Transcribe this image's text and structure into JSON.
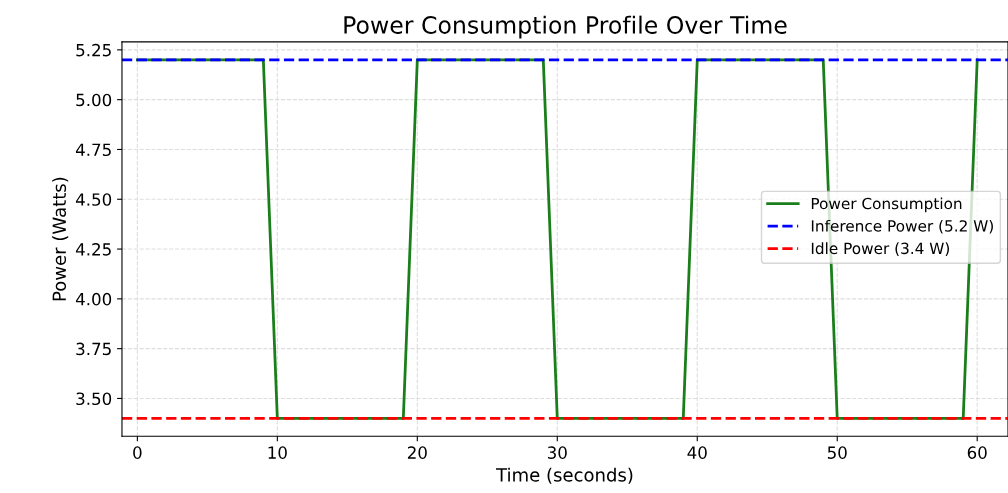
{
  "chart_data": {
    "type": "line",
    "title": "Power Consumption Profile Over Time",
    "xlabel": "Time (seconds)",
    "ylabel": "Power (Watts)",
    "series": [
      {
        "name": "Power Consumption",
        "color": "#1a7f1a",
        "x": [
          0,
          9,
          10,
          19,
          20,
          29,
          30,
          39,
          40,
          49,
          50,
          59,
          60
        ],
        "values": [
          5.2,
          5.2,
          3.4,
          3.4,
          5.2,
          5.2,
          3.4,
          3.4,
          5.2,
          5.2,
          3.4,
          3.4,
          5.2
        ]
      }
    ],
    "ref_lines": [
      {
        "axis": "y",
        "value": 5.2,
        "label": "Inference Power (5.2 W)",
        "color": "#0000ff",
        "line_style": "dashed"
      },
      {
        "axis": "y",
        "value": 3.4,
        "label": "Idle Power (3.4 W)",
        "color": "#ff0000",
        "line_style": "dashed"
      }
    ],
    "xlim": [
      -1.1,
      62.2
    ],
    "ylim": [
      3.31,
      5.29
    ],
    "xticks": [
      0,
      10,
      20,
      30,
      40,
      50,
      60
    ],
    "yticks": [
      {
        "value": 3.5,
        "label": "3.50"
      },
      3.75,
      {
        "value": 4.0,
        "label": "4.00"
      },
      4.25,
      {
        "value": 4.5,
        "label": "4.50"
      },
      4.75,
      {
        "value": 5.0,
        "label": "5.00"
      },
      5.25
    ],
    "grid": true,
    "legend": "right",
    "line_style": "solid",
    "marker": "none"
  }
}
